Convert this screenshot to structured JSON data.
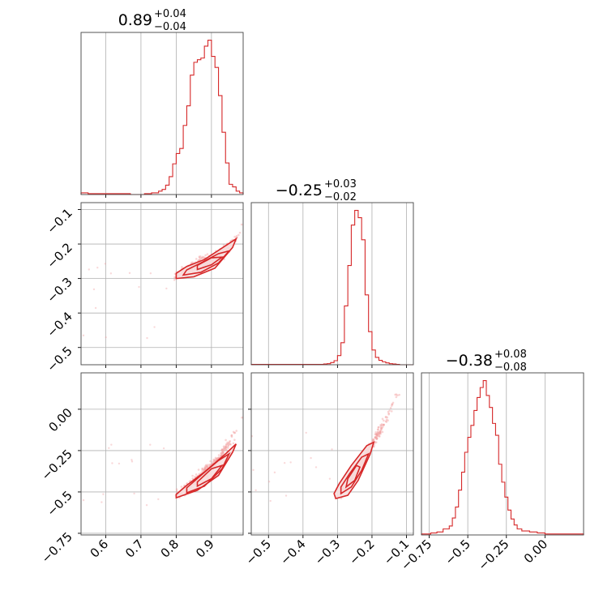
{
  "chart_data": [
    {
      "type": "histogram",
      "panel": "corner-1-1",
      "title_value": "0.89",
      "title_plus": "+0.04",
      "title_minus": "−0.04",
      "xlim": [
        0.53,
        0.99
      ],
      "xticks": [
        0.6,
        0.7,
        0.8,
        0.9
      ],
      "bins": [
        0.53,
        0.55,
        0.57,
        0.59,
        0.61,
        0.63,
        0.65,
        0.67,
        0.69,
        0.71,
        0.73,
        0.75,
        0.76,
        0.77,
        0.78,
        0.79,
        0.8,
        0.81,
        0.82,
        0.83,
        0.84,
        0.85,
        0.86,
        0.87,
        0.88,
        0.89,
        0.9,
        0.91,
        0.92,
        0.93,
        0.94,
        0.95,
        0.96,
        0.97,
        0.98,
        0.99
      ],
      "counts": [
        2,
        1,
        1,
        1,
        1,
        1,
        1,
        0,
        0,
        1,
        2,
        4,
        6,
        11,
        21,
        36,
        48,
        54,
        81,
        104,
        140,
        155,
        158,
        160,
        174,
        181,
        162,
        149,
        116,
        73,
        37,
        12,
        9,
        4,
        2
      ]
    },
    {
      "type": "histogram",
      "panel": "corner-2-2",
      "title_value": "−0.25",
      "title_plus": "+0.03",
      "title_minus": "−0.02",
      "xlim": [
        -0.55,
        -0.08
      ],
      "xticks": [
        -0.5,
        -0.4,
        -0.3,
        -0.2,
        -0.1
      ],
      "bins": [
        -0.55,
        -0.34,
        -0.33,
        -0.32,
        -0.31,
        -0.3,
        -0.29,
        -0.28,
        -0.27,
        -0.26,
        -0.25,
        -0.24,
        -0.23,
        -0.22,
        -0.21,
        -0.2,
        -0.19,
        -0.18,
        -0.17,
        -0.16,
        -0.15,
        -0.14,
        -0.13,
        -0.12,
        -0.08
      ],
      "counts": [
        1,
        2,
        3,
        6,
        11,
        25,
        60,
        160,
        270,
        380,
        420,
        400,
        340,
        190,
        90,
        40,
        20,
        12,
        8,
        5,
        3,
        2,
        1,
        0
      ]
    },
    {
      "type": "histogram",
      "panel": "corner-3-3",
      "title_value": "−0.38",
      "title_plus": "+0.08",
      "title_minus": "−0.08",
      "xlim": [
        -0.8,
        0.25
      ],
      "xticks": [
        -0.75,
        -0.5,
        -0.25,
        0.0
      ],
      "bins": [
        -0.8,
        -0.74,
        -0.7,
        -0.66,
        -0.62,
        -0.6,
        -0.58,
        -0.56,
        -0.54,
        -0.52,
        -0.5,
        -0.48,
        -0.46,
        -0.44,
        -0.42,
        -0.4,
        -0.38,
        -0.36,
        -0.34,
        -0.32,
        -0.3,
        -0.28,
        -0.26,
        -0.24,
        -0.22,
        -0.2,
        -0.18,
        -0.15,
        -0.1,
        -0.05,
        0.0,
        0.05,
        0.1,
        0.15,
        0.2,
        0.25
      ],
      "counts": [
        1,
        2,
        3,
        6,
        9,
        17,
        28,
        45,
        63,
        83,
        98,
        110,
        125,
        138,
        148,
        155,
        140,
        128,
        112,
        100,
        71,
        53,
        38,
        25,
        16,
        10,
        6,
        4,
        3,
        2,
        1,
        1,
        1,
        1,
        1
      ]
    },
    {
      "type": "scatter",
      "panel": "corner-2-1",
      "xlim": [
        0.53,
        0.99
      ],
      "ylim": [
        -0.55,
        -0.08
      ],
      "yticks": [
        -0.1,
        -0.2,
        -0.3,
        -0.4,
        -0.5
      ],
      "ridge_x": [
        0.8,
        0.84,
        0.88,
        0.92,
        0.96,
        0.99
      ],
      "ridge_y": [
        -0.29,
        -0.27,
        -0.255,
        -0.235,
        -0.2,
        -0.14
      ],
      "contours": [
        {
          "x": [
            0.8,
            0.85,
            0.91,
            0.96,
            0.97,
            0.94,
            0.88,
            0.83,
            0.8
          ],
          "y": [
            -0.3,
            -0.295,
            -0.27,
            -0.21,
            -0.185,
            -0.205,
            -0.245,
            -0.265,
            -0.285
          ]
        },
        {
          "x": [
            0.82,
            0.87,
            0.92,
            0.95,
            0.92,
            0.87,
            0.83
          ],
          "y": [
            -0.29,
            -0.282,
            -0.255,
            -0.22,
            -0.228,
            -0.255,
            -0.275
          ]
        },
        {
          "x": [
            0.86,
            0.9,
            0.93,
            0.9,
            0.86
          ],
          "y": [
            -0.274,
            -0.26,
            -0.238,
            -0.24,
            -0.262
          ]
        }
      ]
    },
    {
      "type": "scatter",
      "panel": "corner-3-1",
      "xlim": [
        0.53,
        0.99
      ],
      "ylim": [
        -0.76,
        0.22
      ],
      "yticks": [
        0.0,
        -0.25,
        -0.5,
        -0.75
      ],
      "ridge_x": [
        0.8,
        0.84,
        0.88,
        0.92,
        0.96,
        0.99
      ],
      "ridge_y": [
        -0.52,
        -0.46,
        -0.39,
        -0.3,
        -0.17,
        -0.05
      ],
      "contours": [
        {
          "x": [
            0.8,
            0.86,
            0.92,
            0.96,
            0.97,
            0.94,
            0.88,
            0.83,
            0.8
          ],
          "y": [
            -0.535,
            -0.49,
            -0.4,
            -0.26,
            -0.21,
            -0.27,
            -0.38,
            -0.46,
            -0.515
          ]
        },
        {
          "x": [
            0.83,
            0.88,
            0.93,
            0.95,
            0.92,
            0.87,
            0.83
          ],
          "y": [
            -0.505,
            -0.465,
            -0.36,
            -0.27,
            -0.31,
            -0.4,
            -0.475
          ]
        },
        {
          "x": [
            0.86,
            0.9,
            0.93,
            0.9,
            0.86
          ],
          "y": [
            -0.465,
            -0.42,
            -0.34,
            -0.36,
            -0.44
          ]
        }
      ]
    },
    {
      "type": "scatter",
      "panel": "corner-3-2",
      "xlim": [
        -0.55,
        -0.08
      ],
      "ylim": [
        -0.76,
        0.22
      ],
      "ridge_x": [
        -0.3,
        -0.27,
        -0.24,
        -0.21,
        -0.17,
        -0.12
      ],
      "ridge_y": [
        -0.52,
        -0.45,
        -0.36,
        -0.25,
        -0.1,
        0.12
      ],
      "contours": [
        {
          "x": [
            -0.305,
            -0.27,
            -0.24,
            -0.205,
            -0.195,
            -0.215,
            -0.26,
            -0.295,
            -0.31
          ],
          "y": [
            -0.54,
            -0.52,
            -0.43,
            -0.27,
            -0.2,
            -0.22,
            -0.34,
            -0.45,
            -0.51
          ]
        },
        {
          "x": [
            -0.29,
            -0.26,
            -0.23,
            -0.21,
            -0.23,
            -0.265,
            -0.29
          ],
          "y": [
            -0.51,
            -0.47,
            -0.37,
            -0.27,
            -0.29,
            -0.39,
            -0.47
          ]
        },
        {
          "x": [
            -0.275,
            -0.25,
            -0.235,
            -0.245,
            -0.27
          ],
          "y": [
            -0.47,
            -0.43,
            -0.35,
            -0.34,
            -0.42
          ]
        }
      ]
    }
  ],
  "colors": {
    "series": "#d62728",
    "contour_fill": "#f7dede",
    "points": "#f1a1a2",
    "grid": "#b0b0b0"
  }
}
